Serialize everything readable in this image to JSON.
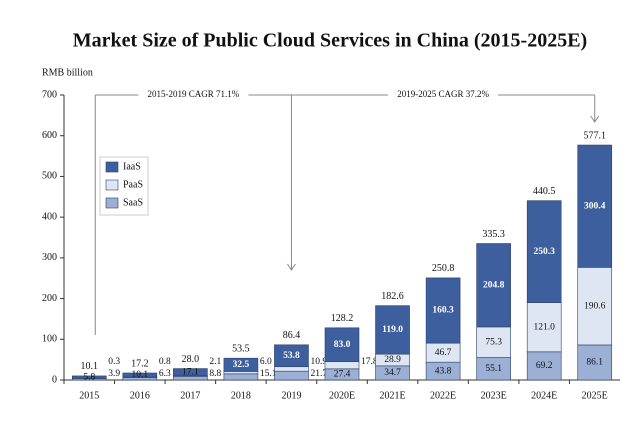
{
  "chart_data": {
    "type": "stacked_bar",
    "title": "Market Size of Public Cloud Services in China (2015-2025E)",
    "y_label": "RMB billion",
    "annotations": [
      "2015-2019 CAGR 71.1%",
      "2019-2025 CAGR 37.2%"
    ],
    "categories": [
      "2015",
      "2016",
      "2017",
      "2018",
      "2019",
      "2020E",
      "2021E",
      "2022E",
      "2023E",
      "2024E",
      "2025E"
    ],
    "series": [
      {
        "name": "SaaS",
        "color": "#9cb0d6",
        "values": [
          3.9,
          6.3,
          8.8,
          15.1,
          21.7,
          27.4,
          34.7,
          43.8,
          55.1,
          69.2,
          86.1
        ],
        "value_labels": [
          "3.9",
          "6.3",
          "8.8",
          "15.1",
          "21.7",
          "27.4",
          "34.7",
          "43.8",
          "55.1",
          "69.2",
          "86.1"
        ]
      },
      {
        "name": "PaaS",
        "color": "#dfe6f3",
        "values": [
          0.3,
          0.8,
          2.1,
          6.0,
          10.9,
          17.8,
          28.9,
          46.7,
          75.3,
          121.0,
          190.6
        ],
        "value_labels": [
          "0.3",
          "0.8",
          "2.1",
          "6.0",
          "10.9",
          "17.8",
          "28.9",
          "46.7",
          "75.3",
          "121.0",
          "190.6"
        ]
      },
      {
        "name": "IaaS",
        "color": "#3d5f9e",
        "values": [
          5.8,
          10.1,
          17.1,
          32.5,
          53.8,
          83.0,
          119.0,
          160.3,
          204.8,
          250.3,
          300.4
        ],
        "value_labels": [
          "5.8",
          "10.1",
          "17.1",
          "32.5",
          "53.8",
          "83.0",
          "119.0",
          "160.3",
          "204.8",
          "250.3",
          "300.4"
        ]
      }
    ],
    "totals": [
      10.1,
      17.2,
      28.0,
      53.5,
      86.4,
      128.2,
      182.6,
      250.8,
      335.3,
      440.5,
      577.1
    ],
    "total_labels": [
      "10.1",
      "17.2",
      "28.0",
      "53.5",
      "86.4",
      "128.2",
      "182.6",
      "250.8",
      "335.3",
      "440.5",
      "577.1"
    ],
    "ylim": [
      0,
      700
    ],
    "yticks": [
      0,
      100,
      200,
      300,
      400,
      500,
      600,
      700
    ],
    "grid": false,
    "legend": "upper left"
  }
}
